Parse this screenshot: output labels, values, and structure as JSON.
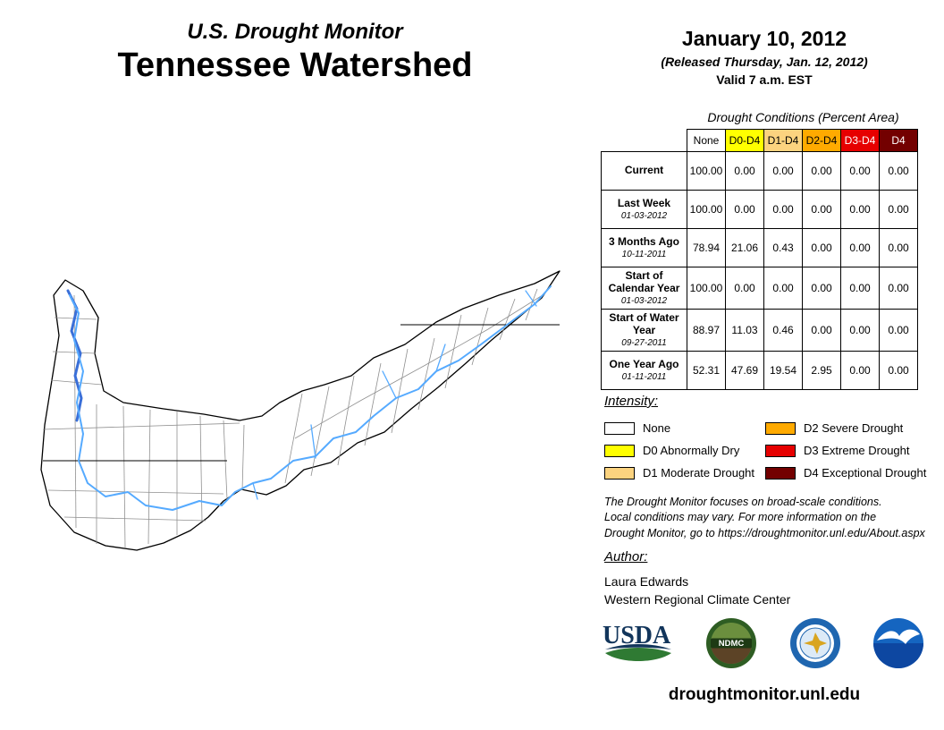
{
  "header": {
    "title_line1": "U.S. Drought Monitor",
    "title_line2": "Tennessee Watershed",
    "date": "January 10, 2012",
    "released": "(Released Thursday, Jan. 12, 2012)",
    "valid": "Valid 7 a.m. EST"
  },
  "table": {
    "caption": "Drought Conditions (Percent Area)",
    "columns": [
      "None",
      "D0-D4",
      "D1-D4",
      "D2-D4",
      "D3-D4",
      "D4"
    ],
    "column_colors": [
      "#FFFFFF",
      "#FFFF00",
      "#FCD37F",
      "#FFAA00",
      "#E60000",
      "#730000"
    ],
    "column_text_colors": [
      "#000000",
      "#000000",
      "#000000",
      "#000000",
      "#FFFFFF",
      "#FFFFFF"
    ],
    "rows": [
      {
        "label": "Current",
        "sublabel": "",
        "values": [
          "100.00",
          "0.00",
          "0.00",
          "0.00",
          "0.00",
          "0.00"
        ]
      },
      {
        "label": "Last Week",
        "sublabel": "01-03-2012",
        "values": [
          "100.00",
          "0.00",
          "0.00",
          "0.00",
          "0.00",
          "0.00"
        ]
      },
      {
        "label": "3 Months Ago",
        "sublabel": "10-11-2011",
        "values": [
          "78.94",
          "21.06",
          "0.43",
          "0.00",
          "0.00",
          "0.00"
        ]
      },
      {
        "label": "Start of Calendar Year",
        "sublabel": "01-03-2012",
        "values": [
          "100.00",
          "0.00",
          "0.00",
          "0.00",
          "0.00",
          "0.00"
        ]
      },
      {
        "label": "Start of Water Year",
        "sublabel": "09-27-2011",
        "values": [
          "88.97",
          "11.03",
          "0.46",
          "0.00",
          "0.00",
          "0.00"
        ]
      },
      {
        "label": "One Year Ago",
        "sublabel": "01-11-2011",
        "values": [
          "52.31",
          "47.69",
          "19.54",
          "2.95",
          "0.00",
          "0.00"
        ]
      }
    ]
  },
  "legend": {
    "title": "Intensity:",
    "items": [
      {
        "label": "None",
        "color": "#FFFFFF"
      },
      {
        "label": "D0 Abnormally Dry",
        "color": "#FFFF00"
      },
      {
        "label": "D1 Moderate Drought",
        "color": "#FCD37F"
      },
      {
        "label": "D2 Severe Drought",
        "color": "#FFAA00"
      },
      {
        "label": "D3 Extreme Drought",
        "color": "#E60000"
      },
      {
        "label": "D4 Exceptional Drought",
        "color": "#730000"
      }
    ]
  },
  "disclaimer": {
    "lines": [
      "The Drought Monitor focuses on broad-scale conditions.",
      "Local conditions may vary. For more information on the",
      "Drought Monitor, go to https://droughtmonitor.unl.edu/About.aspx"
    ]
  },
  "author": {
    "heading": "Author:",
    "name": "Laura Edwards",
    "org": "Western Regional Climate Center"
  },
  "map": {
    "fill_color": "#FFFFFF",
    "river_color": "#55AAFF",
    "lake_color": "#3A6FD8",
    "outline_color": "#000000",
    "county_color": "#909090"
  },
  "logos": {
    "usda_label": "USDA",
    "ndmc_label": "NDMC"
  },
  "footer": {
    "url": "droughtmonitor.unl.edu"
  }
}
